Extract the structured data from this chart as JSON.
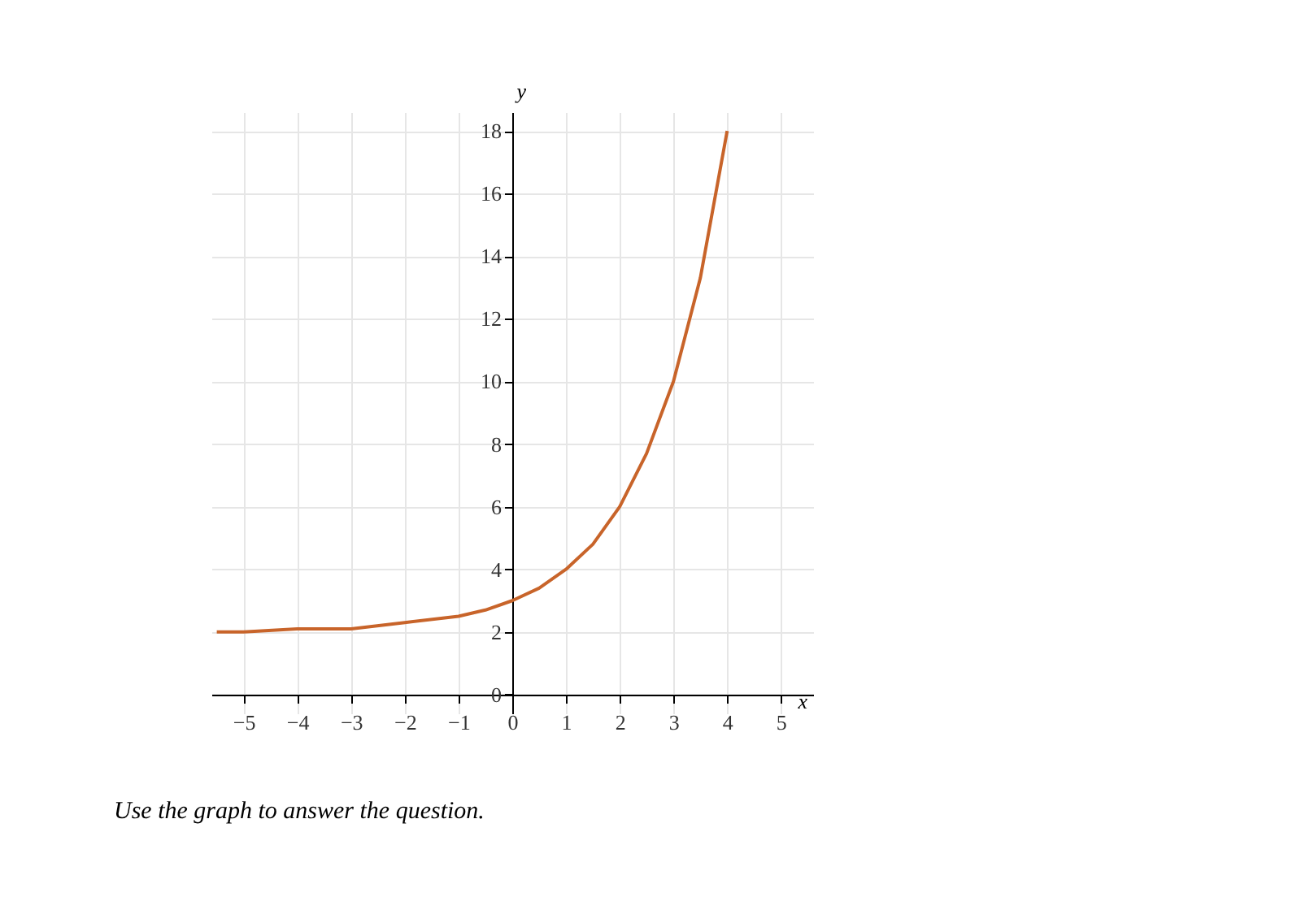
{
  "chart_data": {
    "type": "line",
    "xlabel": "x",
    "ylabel": "y",
    "x": [
      -5.5,
      -5,
      -4,
      -3,
      -2,
      -1,
      -0.5,
      0,
      0.5,
      1,
      1.5,
      2,
      2.5,
      3,
      3.5,
      4
    ],
    "series": [
      {
        "color": "#c8642a",
        "values": [
          2.0,
          2.0,
          2.1,
          2.1,
          2.3,
          2.5,
          2.7,
          3,
          3.4,
          4,
          4.8,
          6,
          7.7,
          10,
          13.3,
          18
        ]
      }
    ],
    "xlim": [
      -5.6,
      5.6
    ],
    "ylim": [
      -0.6,
      18.6
    ],
    "xticks": [
      -5,
      -4,
      -3,
      -2,
      -1,
      0,
      1,
      2,
      3,
      4,
      5
    ],
    "yticks": [
      0,
      2,
      4,
      6,
      8,
      10,
      12,
      14,
      16,
      18
    ],
    "grid": true,
    "marker": "none",
    "line_style": "solid",
    "annotations": [
      "Use the graph to answer the question."
    ]
  }
}
